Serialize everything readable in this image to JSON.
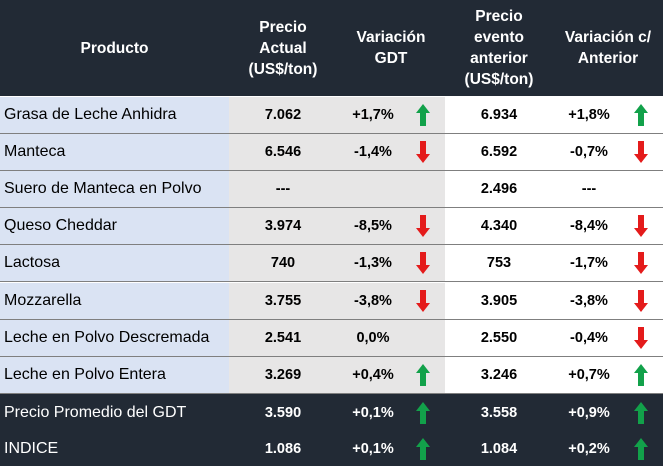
{
  "header": {
    "producto": "Producto",
    "precio_actual": "Precio\nActual\n(US$/ton)",
    "variacion_gdt": "Variación\nGDT",
    "precio_anterior": "Precio\nevento\nanterior\n(US$/ton)",
    "variacion_anterior": "Variación c/\nAnterior"
  },
  "colors": {
    "up": "#12a14a",
    "down": "#e41b1b",
    "header_bg": "#222a35",
    "name_bg": "#dae3f3",
    "price_bg": "#e7e6e6"
  },
  "rows": [
    {
      "producto": "Grasa de Leche Anhidra",
      "precio": "7.062",
      "var_gdt": "+1,7%",
      "dir_gdt": "up",
      "anterior": "6.934",
      "var_ant": "+1,8%",
      "dir_ant": "up"
    },
    {
      "producto": "Manteca",
      "precio": "6.546",
      "var_gdt": "-1,4%",
      "dir_gdt": "down",
      "anterior": "6.592",
      "var_ant": "-0,7%",
      "dir_ant": "down"
    },
    {
      "producto": "Suero de Manteca en Polvo",
      "precio": "---",
      "var_gdt": "",
      "dir_gdt": "none",
      "anterior": "2.496",
      "var_ant": "---",
      "dir_ant": "none"
    },
    {
      "producto": "Queso Cheddar",
      "precio": "3.974",
      "var_gdt": "-8,5%",
      "dir_gdt": "down",
      "anterior": "4.340",
      "var_ant": "-8,4%",
      "dir_ant": "down"
    },
    {
      "producto": "Lactosa",
      "precio": "740",
      "var_gdt": "-1,3%",
      "dir_gdt": "down",
      "anterior": "753",
      "var_ant": "-1,7%",
      "dir_ant": "down"
    },
    {
      "producto": "Mozzarella",
      "precio": "3.755",
      "var_gdt": "-3,8%",
      "dir_gdt": "down",
      "anterior": "3.905",
      "var_ant": "-3,8%",
      "dir_ant": "down"
    },
    {
      "producto": "Leche en Polvo Descremada",
      "precio": "2.541",
      "var_gdt": "0,0%",
      "dir_gdt": "none",
      "anterior": "2.550",
      "var_ant": "-0,4%",
      "dir_ant": "down"
    },
    {
      "producto": "Leche en Polvo Entera",
      "precio": "3.269",
      "var_gdt": "+0,4%",
      "dir_gdt": "up",
      "anterior": "3.246",
      "var_ant": "+0,7%",
      "dir_ant": "up"
    }
  ],
  "summary": [
    {
      "producto": "Precio Promedio del GDT",
      "precio": "3.590",
      "var_gdt": "+0,1%",
      "dir_gdt": "up",
      "anterior": "3.558",
      "var_ant": "+0,9%",
      "dir_ant": "up"
    },
    {
      "producto": "INDICE",
      "precio": "1.086",
      "var_gdt": "+0,1%",
      "dir_gdt": "up",
      "anterior": "1.084",
      "var_ant": "+0,2%",
      "dir_ant": "up"
    }
  ]
}
